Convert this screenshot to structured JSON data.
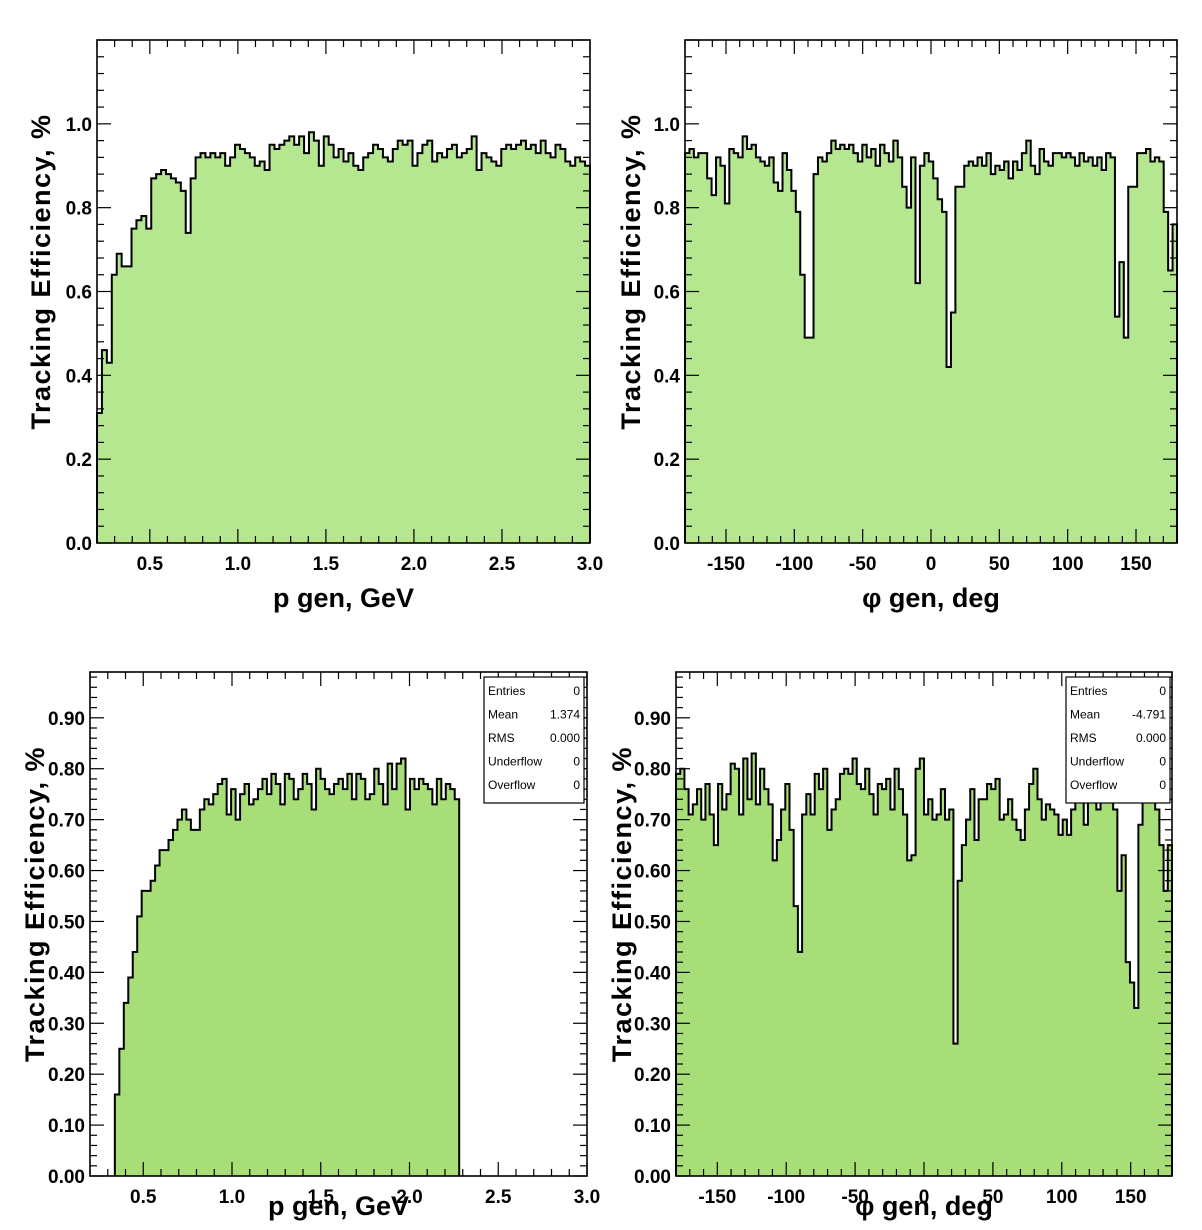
{
  "chart_data": [
    {
      "type": "histogram",
      "xlabel": "p gen, GeV",
      "ylabel": "Tracking Efficiency, %",
      "xlim": [
        0.2,
        3.0
      ],
      "ylim": [
        0.0,
        1.2
      ],
      "x_ticks": [
        0.5,
        1.0,
        1.5,
        2.0,
        2.5,
        3.0
      ],
      "x_tick_labels": [
        "0.5",
        "1.0",
        "1.5",
        "2.0",
        "2.5",
        "3.0"
      ],
      "y_ticks": [
        0.0,
        0.2,
        0.4,
        0.6,
        0.8,
        1.0
      ],
      "y_tick_labels": [
        "0.0",
        "0.2",
        "0.4",
        "0.6",
        "0.8",
        "1.0"
      ],
      "fill_color": "#b5e690",
      "bin_range": [
        0.2,
        3.0
      ],
      "values": [
        0.31,
        0.46,
        0.43,
        0.64,
        0.69,
        0.66,
        0.66,
        0.75,
        0.77,
        0.78,
        0.75,
        0.87,
        0.88,
        0.89,
        0.88,
        0.87,
        0.86,
        0.84,
        0.74,
        0.87,
        0.92,
        0.93,
        0.92,
        0.93,
        0.92,
        0.93,
        0.9,
        0.92,
        0.95,
        0.94,
        0.93,
        0.92,
        0.9,
        0.91,
        0.89,
        0.95,
        0.94,
        0.95,
        0.96,
        0.97,
        0.95,
        0.97,
        0.93,
        0.98,
        0.96,
        0.9,
        0.97,
        0.95,
        0.92,
        0.94,
        0.91,
        0.93,
        0.9,
        0.89,
        0.92,
        0.93,
        0.95,
        0.94,
        0.92,
        0.91,
        0.94,
        0.96,
        0.95,
        0.96,
        0.9,
        0.93,
        0.95,
        0.96,
        0.91,
        0.93,
        0.92,
        0.94,
        0.95,
        0.92,
        0.93,
        0.94,
        0.97,
        0.89,
        0.93,
        0.92,
        0.91,
        0.9,
        0.94,
        0.95,
        0.94,
        0.95,
        0.96,
        0.94,
        0.95,
        0.93,
        0.96,
        0.93,
        0.92,
        0.95,
        0.94,
        0.91,
        0.9,
        0.92,
        0.91,
        0.9
      ]
    },
    {
      "type": "histogram",
      "xlabel": "φ gen, deg",
      "ylabel": "Tracking Efficiency, %",
      "xlim": [
        -180,
        180
      ],
      "ylim": [
        0.0,
        1.2
      ],
      "x_ticks": [
        -150,
        -100,
        -50,
        0,
        50,
        100,
        150
      ],
      "x_tick_labels": [
        "-150",
        "-100",
        "-50",
        "0",
        "50",
        "100",
        "150"
      ],
      "y_ticks": [
        0.0,
        0.2,
        0.4,
        0.6,
        0.8,
        1.0
      ],
      "y_tick_labels": [
        "0.0",
        "0.2",
        "0.4",
        "0.6",
        "0.8",
        "1.0"
      ],
      "fill_color": "#b5e690",
      "bin_range": [
        -180,
        180
      ],
      "values": [
        0.93,
        0.94,
        0.92,
        0.93,
        0.93,
        0.87,
        0.83,
        0.92,
        0.9,
        0.81,
        0.94,
        0.93,
        0.92,
        0.97,
        0.94,
        0.95,
        0.92,
        0.91,
        0.9,
        0.92,
        0.86,
        0.84,
        0.93,
        0.89,
        0.84,
        0.79,
        0.64,
        0.49,
        0.49,
        0.88,
        0.92,
        0.91,
        0.93,
        0.96,
        0.94,
        0.95,
        0.94,
        0.95,
        0.93,
        0.91,
        0.95,
        0.92,
        0.94,
        0.9,
        0.95,
        0.93,
        0.91,
        0.96,
        0.92,
        0.85,
        0.8,
        0.92,
        0.62,
        0.9,
        0.93,
        0.91,
        0.87,
        0.82,
        0.79,
        0.42,
        0.55,
        0.85,
        0.85,
        0.9,
        0.91,
        0.9,
        0.92,
        0.9,
        0.93,
        0.88,
        0.9,
        0.89,
        0.91,
        0.87,
        0.91,
        0.89,
        0.93,
        0.96,
        0.9,
        0.88,
        0.94,
        0.91,
        0.9,
        0.93,
        0.93,
        0.92,
        0.93,
        0.92,
        0.9,
        0.93,
        0.91,
        0.92,
        0.9,
        0.92,
        0.89,
        0.93,
        0.92,
        0.54,
        0.67,
        0.49,
        0.85,
        0.85,
        0.93,
        0.93,
        0.94,
        0.91,
        0.92,
        0.91,
        0.79,
        0.65,
        0.76
      ]
    },
    {
      "type": "histogram",
      "xlabel": "p gen, GeV",
      "ylabel": "Tracking Efficiency, %",
      "xlim": [
        0.2,
        3.0
      ],
      "ylim": [
        0.0,
        0.99
      ],
      "x_ticks": [
        0.5,
        1.0,
        1.5,
        2.0,
        2.5,
        3.0
      ],
      "x_tick_labels": [
        "0.5",
        "1.0",
        "1.5",
        "2.0",
        "2.5",
        "3.0"
      ],
      "y_ticks": [
        0.0,
        0.1,
        0.2,
        0.3,
        0.4,
        0.5,
        0.6,
        0.7,
        0.8,
        0.9
      ],
      "y_tick_labels": [
        "0.00",
        "0.10",
        "0.20",
        "0.30",
        "0.40",
        "0.50",
        "0.60",
        "0.70",
        "0.80",
        "0.90"
      ],
      "fill_color": "#a7de78",
      "bin_range": [
        0.34,
        2.28
      ],
      "values": [
        0.16,
        0.25,
        0.34,
        0.39,
        0.44,
        0.51,
        0.56,
        0.56,
        0.58,
        0.61,
        0.64,
        0.64,
        0.66,
        0.68,
        0.7,
        0.72,
        0.7,
        0.68,
        0.68,
        0.72,
        0.74,
        0.73,
        0.75,
        0.77,
        0.78,
        0.71,
        0.76,
        0.7,
        0.75,
        0.77,
        0.73,
        0.74,
        0.76,
        0.78,
        0.75,
        0.79,
        0.77,
        0.73,
        0.79,
        0.78,
        0.74,
        0.76,
        0.79,
        0.77,
        0.72,
        0.8,
        0.78,
        0.76,
        0.75,
        0.77,
        0.78,
        0.76,
        0.79,
        0.74,
        0.79,
        0.78,
        0.74,
        0.75,
        0.8,
        0.77,
        0.73,
        0.81,
        0.76,
        0.81,
        0.82,
        0.72,
        0.78,
        0.76,
        0.78,
        0.77,
        0.76,
        0.73,
        0.78,
        0.74,
        0.77,
        0.76,
        0.74
      ]
    },
    {
      "type": "histogram",
      "xlabel": "φ gen, deg",
      "ylabel": "Tracking Efficiency, %",
      "xlim": [
        -180,
        180
      ],
      "ylim": [
        0.0,
        0.99
      ],
      "x_ticks": [
        -150,
        -100,
        -50,
        0,
        50,
        100,
        150
      ],
      "x_tick_labels": [
        "-150",
        "-100",
        "-50",
        "0",
        "50",
        "100",
        "150"
      ],
      "y_ticks": [
        0.0,
        0.1,
        0.2,
        0.3,
        0.4,
        0.5,
        0.6,
        0.7,
        0.8,
        0.9
      ],
      "y_tick_labels": [
        "0.00",
        "0.10",
        "0.20",
        "0.30",
        "0.40",
        "0.50",
        "0.60",
        "0.70",
        "0.80",
        "0.90"
      ],
      "fill_color": "#a7de78",
      "bin_range": [
        -180,
        180
      ],
      "values": [
        0.79,
        0.8,
        0.76,
        0.71,
        0.73,
        0.76,
        0.7,
        0.77,
        0.71,
        0.65,
        0.77,
        0.72,
        0.75,
        0.81,
        0.8,
        0.71,
        0.82,
        0.74,
        0.83,
        0.73,
        0.8,
        0.76,
        0.73,
        0.62,
        0.66,
        0.72,
        0.77,
        0.68,
        0.53,
        0.44,
        0.71,
        0.75,
        0.71,
        0.79,
        0.76,
        0.8,
        0.68,
        0.72,
        0.74,
        0.79,
        0.8,
        0.79,
        0.82,
        0.77,
        0.76,
        0.8,
        0.75,
        0.71,
        0.77,
        0.76,
        0.78,
        0.72,
        0.8,
        0.76,
        0.71,
        0.62,
        0.63,
        0.8,
        0.82,
        0.71,
        0.74,
        0.7,
        0.71,
        0.76,
        0.7,
        0.72,
        0.26,
        0.58,
        0.65,
        0.7,
        0.76,
        0.66,
        0.74,
        0.74,
        0.77,
        0.76,
        0.78,
        0.7,
        0.71,
        0.74,
        0.7,
        0.68,
        0.66,
        0.72,
        0.77,
        0.8,
        0.74,
        0.7,
        0.73,
        0.72,
        0.71,
        0.67,
        0.7,
        0.67,
        0.72,
        0.75,
        0.8,
        0.69,
        0.82,
        0.75,
        0.72,
        0.75,
        0.78,
        0.74,
        0.72,
        0.56,
        0.63,
        0.42,
        0.38,
        0.33,
        0.69,
        0.76,
        0.8,
        0.74,
        0.72,
        0.65,
        0.56,
        0.65
      ],
      "stats": [
        {
          "label": "Entries",
          "value": "0"
        },
        {
          "label": "Mean",
          "value": "-4.791"
        },
        {
          "label": "RMS",
          "value": "0.000"
        },
        {
          "label": "Underflow",
          "value": "0"
        },
        {
          "label": "Overflow",
          "value": "0"
        }
      ]
    }
  ],
  "panel2_stats": [
    {
      "label": "Entries",
      "value": "0"
    },
    {
      "label": "Mean",
      "value": "1.374"
    },
    {
      "label": "RMS",
      "value": "0.000"
    },
    {
      "label": "Underflow",
      "value": "0"
    },
    {
      "label": "Overflow",
      "value": "0"
    }
  ]
}
